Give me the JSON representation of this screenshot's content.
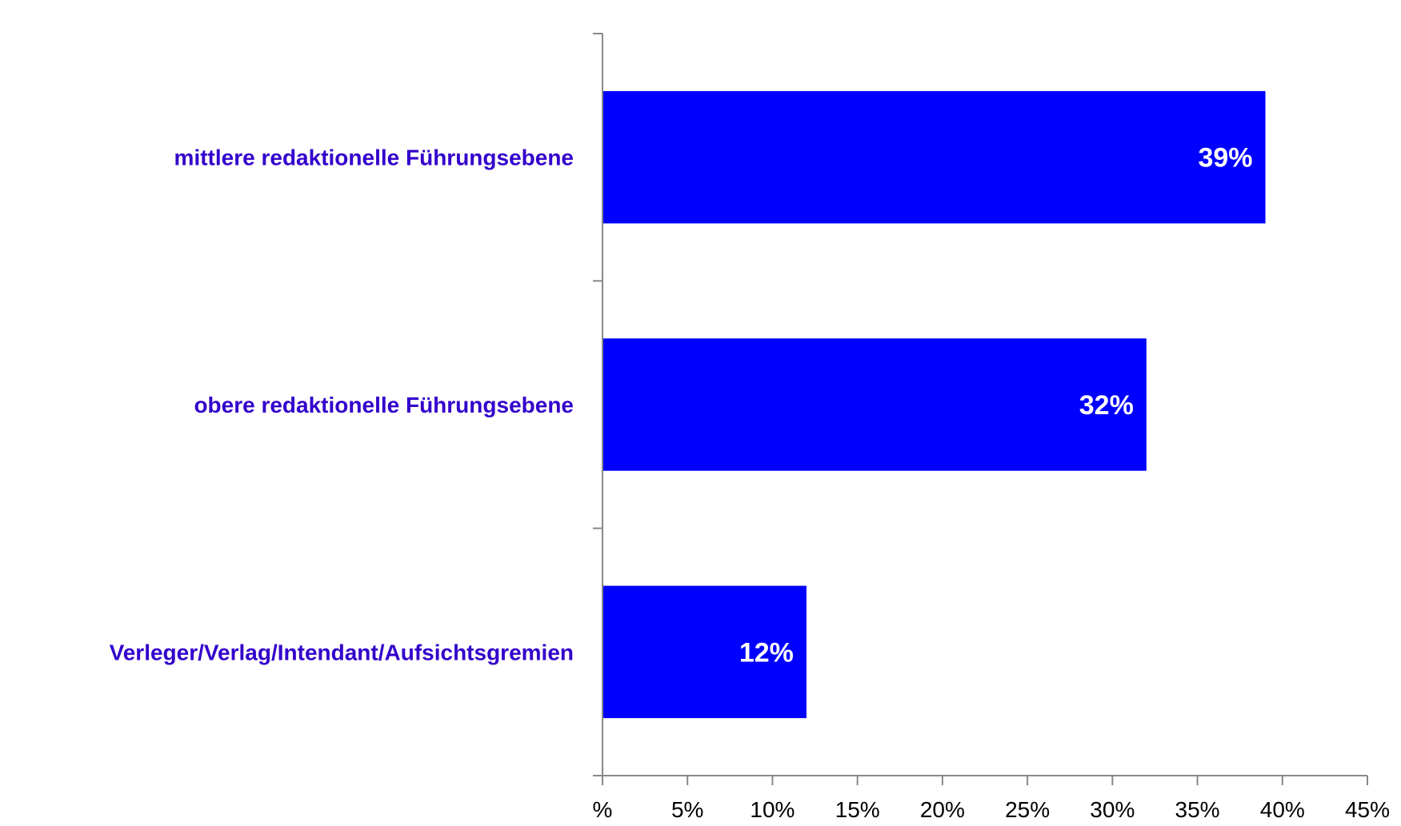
{
  "chart_data": {
    "type": "bar",
    "orientation": "horizontal",
    "categories": [
      "mittlere redaktionelle Führungsebene",
      "obere redaktionelle Führungsebene",
      "Verleger/Verlag/Intendant/Aufsichtsgremien"
    ],
    "values": [
      39,
      32,
      12
    ],
    "data_labels": [
      "39%",
      "32%",
      "12%"
    ],
    "x_ticks": [
      0,
      5,
      10,
      15,
      20,
      25,
      30,
      35,
      40,
      45
    ],
    "x_tick_labels": [
      "%",
      "5%",
      "10%",
      "15%",
      "20%",
      "25%",
      "30%",
      "35%",
      "40%",
      "45%"
    ],
    "xlim": [
      0,
      45
    ],
    "title": "",
    "xlabel": "",
    "ylabel": "",
    "grid": false,
    "legend": "none",
    "colors": {
      "bar": "#0000ff",
      "category_label": "#3300cc",
      "axis": "#888888",
      "data_label": "#ffffff"
    }
  }
}
